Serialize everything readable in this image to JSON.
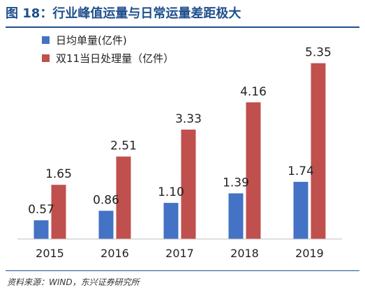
{
  "figure": {
    "title": "图 18：行业峰值运量与日常运量差距极大",
    "source": "资料来源：WIND，东兴证券研究所"
  },
  "chart_data": {
    "type": "bar",
    "categories": [
      "2015",
      "2016",
      "2017",
      "2018",
      "2019"
    ],
    "series": [
      {
        "name": "日均单量(亿件)",
        "color": "#4472c4",
        "values": [
          0.57,
          0.86,
          1.1,
          1.39,
          1.74
        ],
        "labels": [
          "0.57",
          "0.86",
          "1.10",
          "1.39",
          "1.74"
        ]
      },
      {
        "name": "双11当日处理量（亿件）",
        "color": "#c0504d",
        "values": [
          1.65,
          2.51,
          3.33,
          4.16,
          5.35
        ],
        "labels": [
          "1.65",
          "2.51",
          "3.33",
          "4.16",
          "5.35"
        ]
      }
    ],
    "ylim": [
      0,
      6
    ],
    "grid": false,
    "legend": "top-left"
  }
}
